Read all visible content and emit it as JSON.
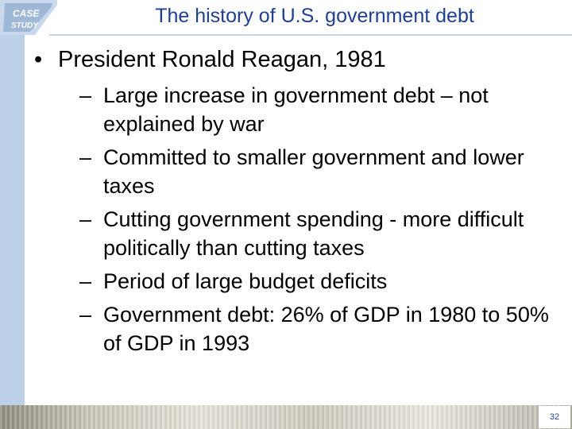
{
  "badge": {
    "line1": "CASE",
    "line2": "STUDY"
  },
  "slide": {
    "title": "The history of U.S. government debt",
    "bullet": "President Ronald Reagan, 1981",
    "sub_items": [
      "Large increase in government debt – not explained by war",
      "Committed to smaller government and lower taxes",
      "Cutting government spending - more difficult politically than cutting taxes",
      "Period of large budget deficits",
      "Government debt: 26% of GDP in 1980 to 50% of GDP in 1993"
    ],
    "page_number": "32"
  },
  "colors": {
    "title": "#1f3f90",
    "left_bar": "#bcd0e8",
    "badge": "#9fb8d8"
  }
}
